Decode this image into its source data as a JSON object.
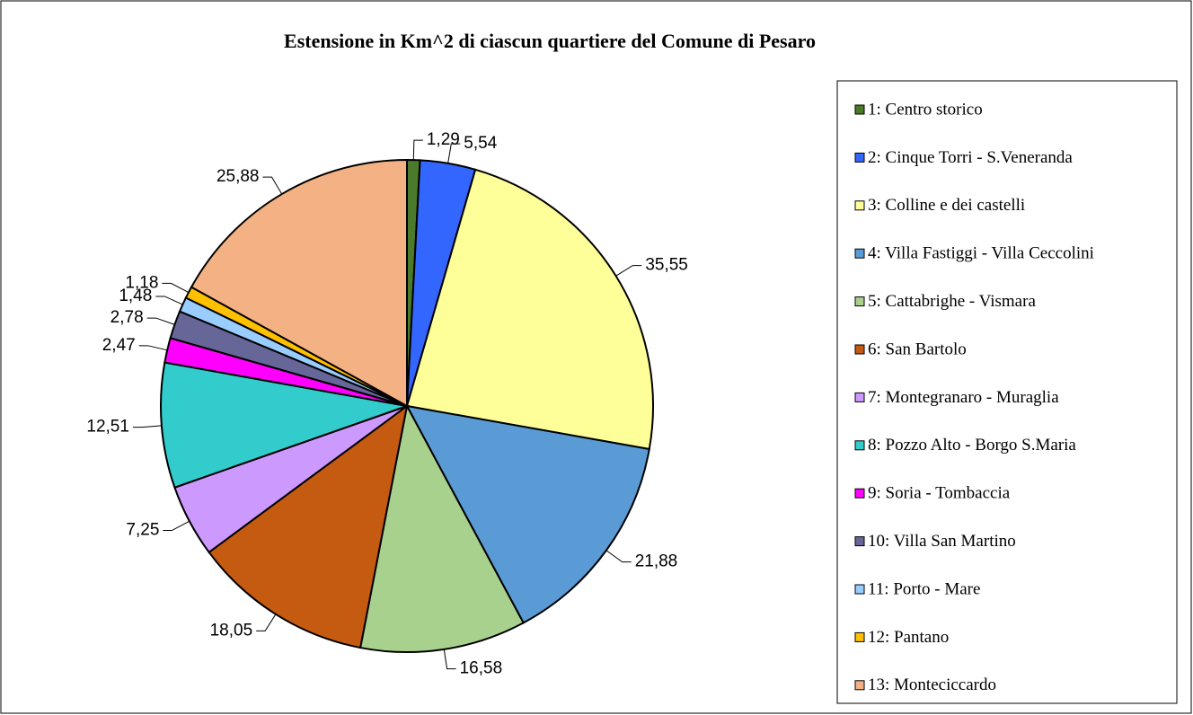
{
  "chart_data": {
    "type": "pie",
    "title": "Estensione in Km^2 di ciascun quartiere del Comune di Pesaro",
    "categories": [
      "1: Centro storico",
      "2: Cinque Torri - S.Veneranda",
      "3: Colline e dei castelli",
      "4: Villa Fastiggi - Villa Ceccolini",
      "5: Cattabrighe - Vismara",
      "6: San Bartolo",
      "7: Montegranaro - Muraglia",
      "8: Pozzo Alto - Borgo S.Maria",
      "9: Soria - Tombaccia",
      "10: Villa San Martino",
      "11: Porto - Mare",
      "12: Pantano",
      "13: Monteciccardo"
    ],
    "values": [
      1.29,
      5.54,
      35.55,
      21.88,
      16.58,
      18.05,
      7.25,
      12.51,
      2.47,
      2.78,
      1.48,
      1.18,
      25.88
    ],
    "value_labels": [
      "1,29",
      "5,54",
      "35,55",
      "21,88",
      "16,58",
      "18,05",
      "7,25",
      "12,51",
      "2,47",
      "2,78",
      "1,48",
      "1,18",
      "25,88"
    ],
    "colors": [
      "#4a7a2a",
      "#3366ff",
      "#ffff99",
      "#5b9bd5",
      "#a9d18e",
      "#c55a11",
      "#cc99ff",
      "#33cccc",
      "#ff00ff",
      "#666699",
      "#99ccff",
      "#ffc000",
      "#f4b183"
    ],
    "legend": "right"
  }
}
